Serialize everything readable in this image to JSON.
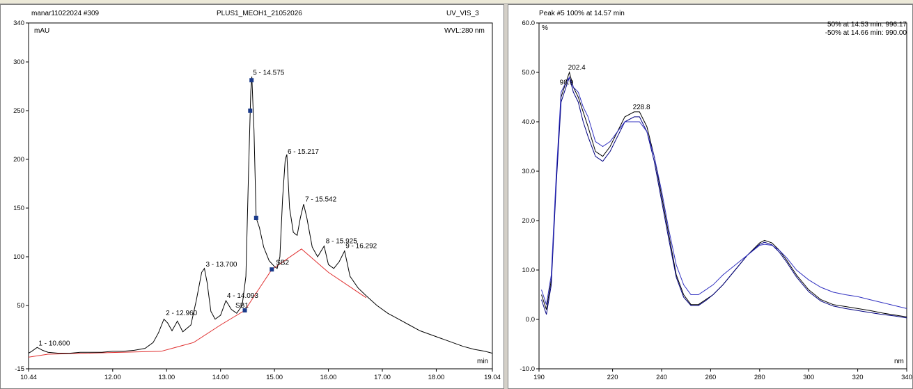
{
  "chromatogram": {
    "header_left": "manar11022024 #309",
    "header_center": "PLUS1_MEOH1_21052026",
    "header_right": "UV_VIS_3",
    "y_unit": "mAU",
    "wavelength": "WVL:280 nm",
    "x_unit": "min",
    "x_ticks": [
      {
        "v": 10.44,
        "label": "10.44"
      },
      {
        "v": 12.0,
        "label": "12.00"
      },
      {
        "v": 13.0,
        "label": "13.00"
      },
      {
        "v": 14.0,
        "label": "14.00"
      },
      {
        "v": 15.0,
        "label": "15.00"
      },
      {
        "v": 16.0,
        "label": "16.00"
      },
      {
        "v": 17.0,
        "label": "17.00"
      },
      {
        "v": 18.0,
        "label": "18.00"
      },
      {
        "v": 19.04,
        "label": "19.04"
      }
    ],
    "y_ticks": [
      {
        "v": -15,
        "label": "-15"
      },
      {
        "v": 50,
        "label": "50"
      },
      {
        "v": 100,
        "label": "100"
      },
      {
        "v": 150,
        "label": "150"
      },
      {
        "v": 200,
        "label": "200"
      },
      {
        "v": 250,
        "label": "250"
      },
      {
        "v": 300,
        "label": "300"
      },
      {
        "v": 340,
        "label": "340"
      }
    ],
    "peak_labels": [
      {
        "text": "1 - 10.600",
        "x": 10.6,
        "y": 6
      },
      {
        "text": "2 - 12.960",
        "x": 12.96,
        "y": 37
      },
      {
        "text": "3 - 13.700",
        "x": 13.7,
        "y": 87
      },
      {
        "text": "4 - 14.093",
        "x": 14.093,
        "y": 55
      },
      {
        "text": "SB1",
        "x": 14.25,
        "y": 45
      },
      {
        "text": "5 - 14.575",
        "x": 14.575,
        "y": 284
      },
      {
        "text": "SB2",
        "x": 15.0,
        "y": 89
      },
      {
        "text": "6 - 15.217",
        "x": 15.217,
        "y": 203
      },
      {
        "text": "7 - 15.542",
        "x": 15.542,
        "y": 154
      },
      {
        "text": "8 - 15.925",
        "x": 15.925,
        "y": 111
      },
      {
        "text": "9 - 16.292",
        "x": 16.292,
        "y": 106
      }
    ]
  },
  "chart_data": [
    {
      "type": "line",
      "title": "",
      "xlabel": "min",
      "ylabel": "mAU",
      "xlim": [
        10.44,
        19.04
      ],
      "ylim": [
        -15,
        340
      ],
      "series": [
        {
          "x": [
            10.44,
            10.5,
            10.6,
            10.7,
            10.8,
            11.0,
            11.2,
            11.4,
            11.6,
            11.8,
            12.0,
            12.2,
            12.4,
            12.6,
            12.75,
            12.85,
            12.95,
            13.02,
            13.1,
            13.2,
            13.3,
            13.45,
            13.55,
            13.65,
            13.7,
            13.75,
            13.82,
            13.9,
            14.0,
            14.1,
            14.2,
            14.3,
            14.4,
            14.47,
            14.52,
            14.56,
            14.58,
            14.62,
            14.66,
            14.72,
            14.8,
            14.9,
            15.0,
            15.05,
            15.1,
            15.15,
            15.2,
            15.23,
            15.28,
            15.35,
            15.42,
            15.48,
            15.54,
            15.6,
            15.7,
            15.8,
            15.92,
            16.0,
            16.1,
            16.2,
            16.3,
            16.4,
            16.55,
            16.7,
            16.9,
            17.1,
            17.3,
            17.5,
            17.7,
            17.9,
            18.1,
            18.3,
            18.5,
            18.7,
            18.9,
            19.04
          ],
          "y": [
            1,
            3,
            7,
            4,
            2,
            1,
            1,
            2,
            2,
            2,
            3,
            3,
            4,
            6,
            12,
            22,
            36,
            32,
            24,
            34,
            23,
            30,
            55,
            84,
            88,
            74,
            44,
            36,
            40,
            55,
            46,
            42,
            50,
            80,
            190,
            270,
            285,
            230,
            140,
            130,
            110,
            96,
            90,
            88,
            100,
            160,
            200,
            205,
            150,
            125,
            122,
            140,
            154,
            140,
            110,
            100,
            111,
            92,
            88,
            95,
            106,
            80,
            68,
            60,
            50,
            42,
            36,
            30,
            24,
            20,
            16,
            12,
            8,
            5,
            3,
            1
          ]
        }
      ]
    },
    {
      "type": "line",
      "title": "",
      "xlabel": "nm",
      "ylabel": "%",
      "xlim": [
        190,
        340
      ],
      "ylim": [
        -10,
        60
      ],
      "series": [
        {
          "x": [
            191,
            193,
            195,
            197,
            199,
            201,
            202.4,
            204,
            206,
            208,
            210,
            213,
            216,
            219,
            222,
            225,
            228.8,
            231,
            234,
            237,
            240,
            243,
            246,
            249,
            252,
            255,
            258,
            261,
            265,
            270,
            275,
            280,
            282,
            285,
            288,
            291,
            295,
            300,
            305,
            310,
            315,
            320,
            325,
            330,
            335,
            340
          ],
          "y": [
            5,
            2,
            8,
            28,
            45,
            48,
            50,
            47,
            45,
            42,
            39,
            34,
            33,
            35,
            38,
            41,
            42,
            42,
            39,
            33,
            25,
            17,
            9,
            5,
            3,
            3,
            4,
            5,
            7,
            10,
            13,
            15.5,
            16,
            15.5,
            14,
            12,
            9,
            6,
            4,
            3,
            2.6,
            2.2,
            1.8,
            1.3,
            0.9,
            0.5
          ]
        },
        {
          "x": [
            191,
            193,
            195,
            197,
            199,
            201,
            202.4,
            204,
            206,
            208,
            210,
            213,
            216,
            219,
            222,
            225,
            228.8,
            231,
            234,
            237,
            240,
            243,
            246,
            249,
            252,
            255,
            258,
            261,
            265,
            270,
            275,
            280,
            282,
            285,
            288,
            291,
            295,
            300,
            305,
            310,
            315,
            320,
            325,
            330,
            335,
            340
          ],
          "y": [
            4,
            1,
            7,
            27,
            44,
            47,
            49,
            46,
            44,
            40,
            37,
            33,
            32,
            34,
            37,
            40,
            41,
            41,
            38,
            32,
            24,
            16,
            8.5,
            4.5,
            2.8,
            2.8,
            3.8,
            5,
            7,
            10,
            13,
            15.2,
            15.6,
            15.1,
            13.6,
            11.6,
            8.6,
            5.6,
            3.7,
            2.7,
            2.2,
            1.8,
            1.4,
            1.0,
            0.7,
            0.3
          ]
        },
        {
          "x": [
            191,
            193,
            195,
            197,
            199,
            201,
            202.4,
            204,
            206,
            208,
            210,
            213,
            216,
            219,
            222,
            225,
            228.8,
            231,
            234,
            237,
            240,
            243,
            246,
            249,
            252,
            255,
            258,
            261,
            265,
            270,
            275,
            280,
            282,
            285,
            288,
            291,
            295,
            300,
            305,
            310,
            315,
            320,
            325,
            330,
            335,
            340
          ],
          "y": [
            6,
            3,
            9,
            29,
            46,
            48,
            49,
            47,
            46,
            43,
            41,
            36,
            35,
            36,
            38,
            40,
            40,
            40,
            38,
            33,
            26,
            18,
            11,
            7,
            5,
            5,
            6,
            7,
            9,
            11,
            13,
            15,
            15.2,
            15,
            14,
            12.5,
            10,
            8,
            6.5,
            5.5,
            5,
            4.6,
            4,
            3.4,
            2.8,
            2.2
          ]
        }
      ]
    }
  ],
  "spectrum": {
    "header": "Peak #5   100% at 14.57 min",
    "y_unit": "%",
    "x_unit": "nm",
    "legend": [
      {
        "text": "50% at 14.53 min:  996.17",
        "color": "#0000cc"
      },
      {
        "text": "-50% at 14.66 min:  990.00",
        "color": "#3333cc"
      }
    ],
    "x_ticks": [
      {
        "v": 190,
        "label": "190"
      },
      {
        "v": 220,
        "label": "220"
      },
      {
        "v": 240,
        "label": "240"
      },
      {
        "v": 260,
        "label": "260"
      },
      {
        "v": 280,
        "label": "280"
      },
      {
        "v": 300,
        "label": "300"
      },
      {
        "v": 320,
        "label": "320"
      },
      {
        "v": 340,
        "label": "340"
      }
    ],
    "y_ticks": [
      {
        "v": -10,
        "label": "-10.0"
      },
      {
        "v": 0,
        "label": "0.0"
      },
      {
        "v": 10,
        "label": "10.0"
      },
      {
        "v": 20,
        "label": "20.0"
      },
      {
        "v": 30,
        "label": "30.0"
      },
      {
        "v": 40,
        "label": "40.0"
      },
      {
        "v": 50,
        "label": "50.0"
      },
      {
        "v": 60,
        "label": "60.0"
      }
    ],
    "peak_labels": [
      {
        "text": "202.4",
        "x": 202.4,
        "y": 50
      },
      {
        "text": "98.9",
        "x": 199,
        "y": 47
      },
      {
        "text": "228.8",
        "x": 228.8,
        "y": 42
      }
    ],
    "series_colors": [
      "#000000",
      "#000080",
      "#3030c0"
    ]
  }
}
